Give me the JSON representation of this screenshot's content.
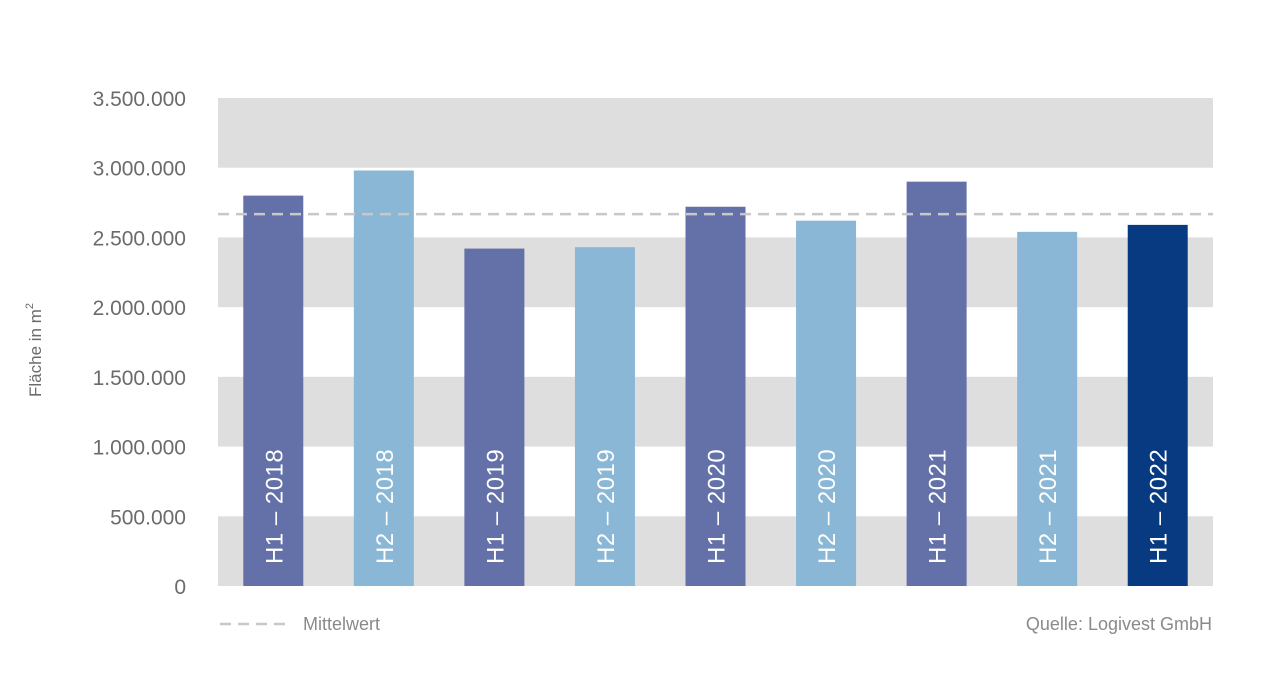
{
  "chart_data": {
    "type": "bar",
    "categories": [
      "H1 – 2018",
      "H2 – 2018",
      "H1 – 2019",
      "H2 – 2019",
      "H1 – 2020",
      "H2 – 2020",
      "H1 – 2021",
      "H2 – 2021",
      "H1 – 2022"
    ],
    "values": [
      2800000,
      2980000,
      2420000,
      2430000,
      2720000,
      2620000,
      2900000,
      2540000,
      2590000
    ],
    "bar_colors": [
      "#6470a8",
      "#8ab7d6",
      "#6470a8",
      "#8ab7d6",
      "#6470a8",
      "#8ab7d6",
      "#6470a8",
      "#8ab7d6",
      "#083a82"
    ],
    "mean_value": 2667000,
    "ylim": [
      0,
      3500000
    ],
    "yticks": [
      0,
      500000,
      1000000,
      1500000,
      2000000,
      2500000,
      3000000,
      3500000
    ],
    "ytick_labels": [
      "0",
      "500.000",
      "1.000.000",
      "1.500.000",
      "2.000.000",
      "2.500.000",
      "3.000.000",
      "3.500.000"
    ],
    "ylabel": "Fläche in m",
    "ylabel_superscript": "2",
    "title": "",
    "xlabel": "",
    "legend": {
      "label": "Mittelwert",
      "placement": "bottom-left"
    },
    "source": "Quelle: Logivest GmbH",
    "band_color": "#dedede",
    "mean_line_color": "#c8c8c8"
  }
}
